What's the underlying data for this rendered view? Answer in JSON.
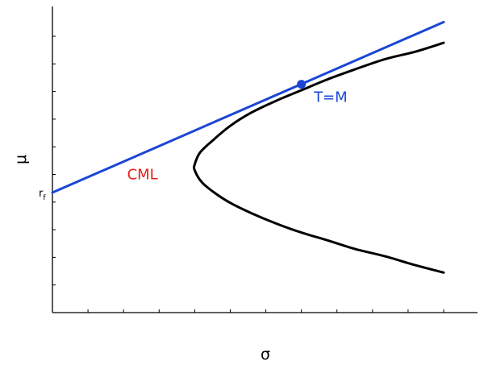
{
  "chart_data": {
    "type": "line",
    "xlabel": "σ",
    "ylabel": "μ",
    "xlim": [
      0,
      11
    ],
    "ylim": [
      0,
      10
    ],
    "x_tick_count": 12,
    "y_tick_count": 10,
    "grid": false,
    "rf_label": {
      "base": "r",
      "sub": "f"
    },
    "rf_value": 4.05,
    "annotations": [
      {
        "text": "CML",
        "x": 2.1,
        "y": 4.5,
        "color": "#e8201b"
      },
      {
        "text": "T=M",
        "x": 7.35,
        "y": 7.1,
        "color": "#1a46d6"
      }
    ],
    "series": [
      {
        "kind": "efficient-frontier",
        "color": "#000000",
        "x": [
          11.0,
          10.2,
          9.35,
          8.5,
          7.7,
          7.0,
          6.3,
          5.6,
          5.0,
          4.55,
          4.2,
          4.0,
          4.0,
          4.15,
          4.5,
          5.0,
          5.6,
          6.3,
          7.0,
          7.7,
          8.5,
          9.35,
          10.2,
          11.0
        ],
        "y": [
          1.35,
          1.6,
          1.9,
          2.15,
          2.45,
          2.7,
          3.0,
          3.35,
          3.7,
          4.05,
          4.4,
          4.8,
          5.0,
          5.4,
          5.8,
          6.3,
          6.75,
          7.15,
          7.5,
          7.85,
          8.2,
          8.55,
          8.8,
          9.1
        ]
      },
      {
        "kind": "capital-market-line",
        "color": "#1a46d6",
        "x": [
          0,
          11
        ],
        "y": [
          4.05,
          9.8
        ]
      }
    ],
    "points": [
      {
        "name": "tangency-point",
        "x": 7.0,
        "y": 7.7,
        "color": "#1a46d6"
      }
    ]
  }
}
